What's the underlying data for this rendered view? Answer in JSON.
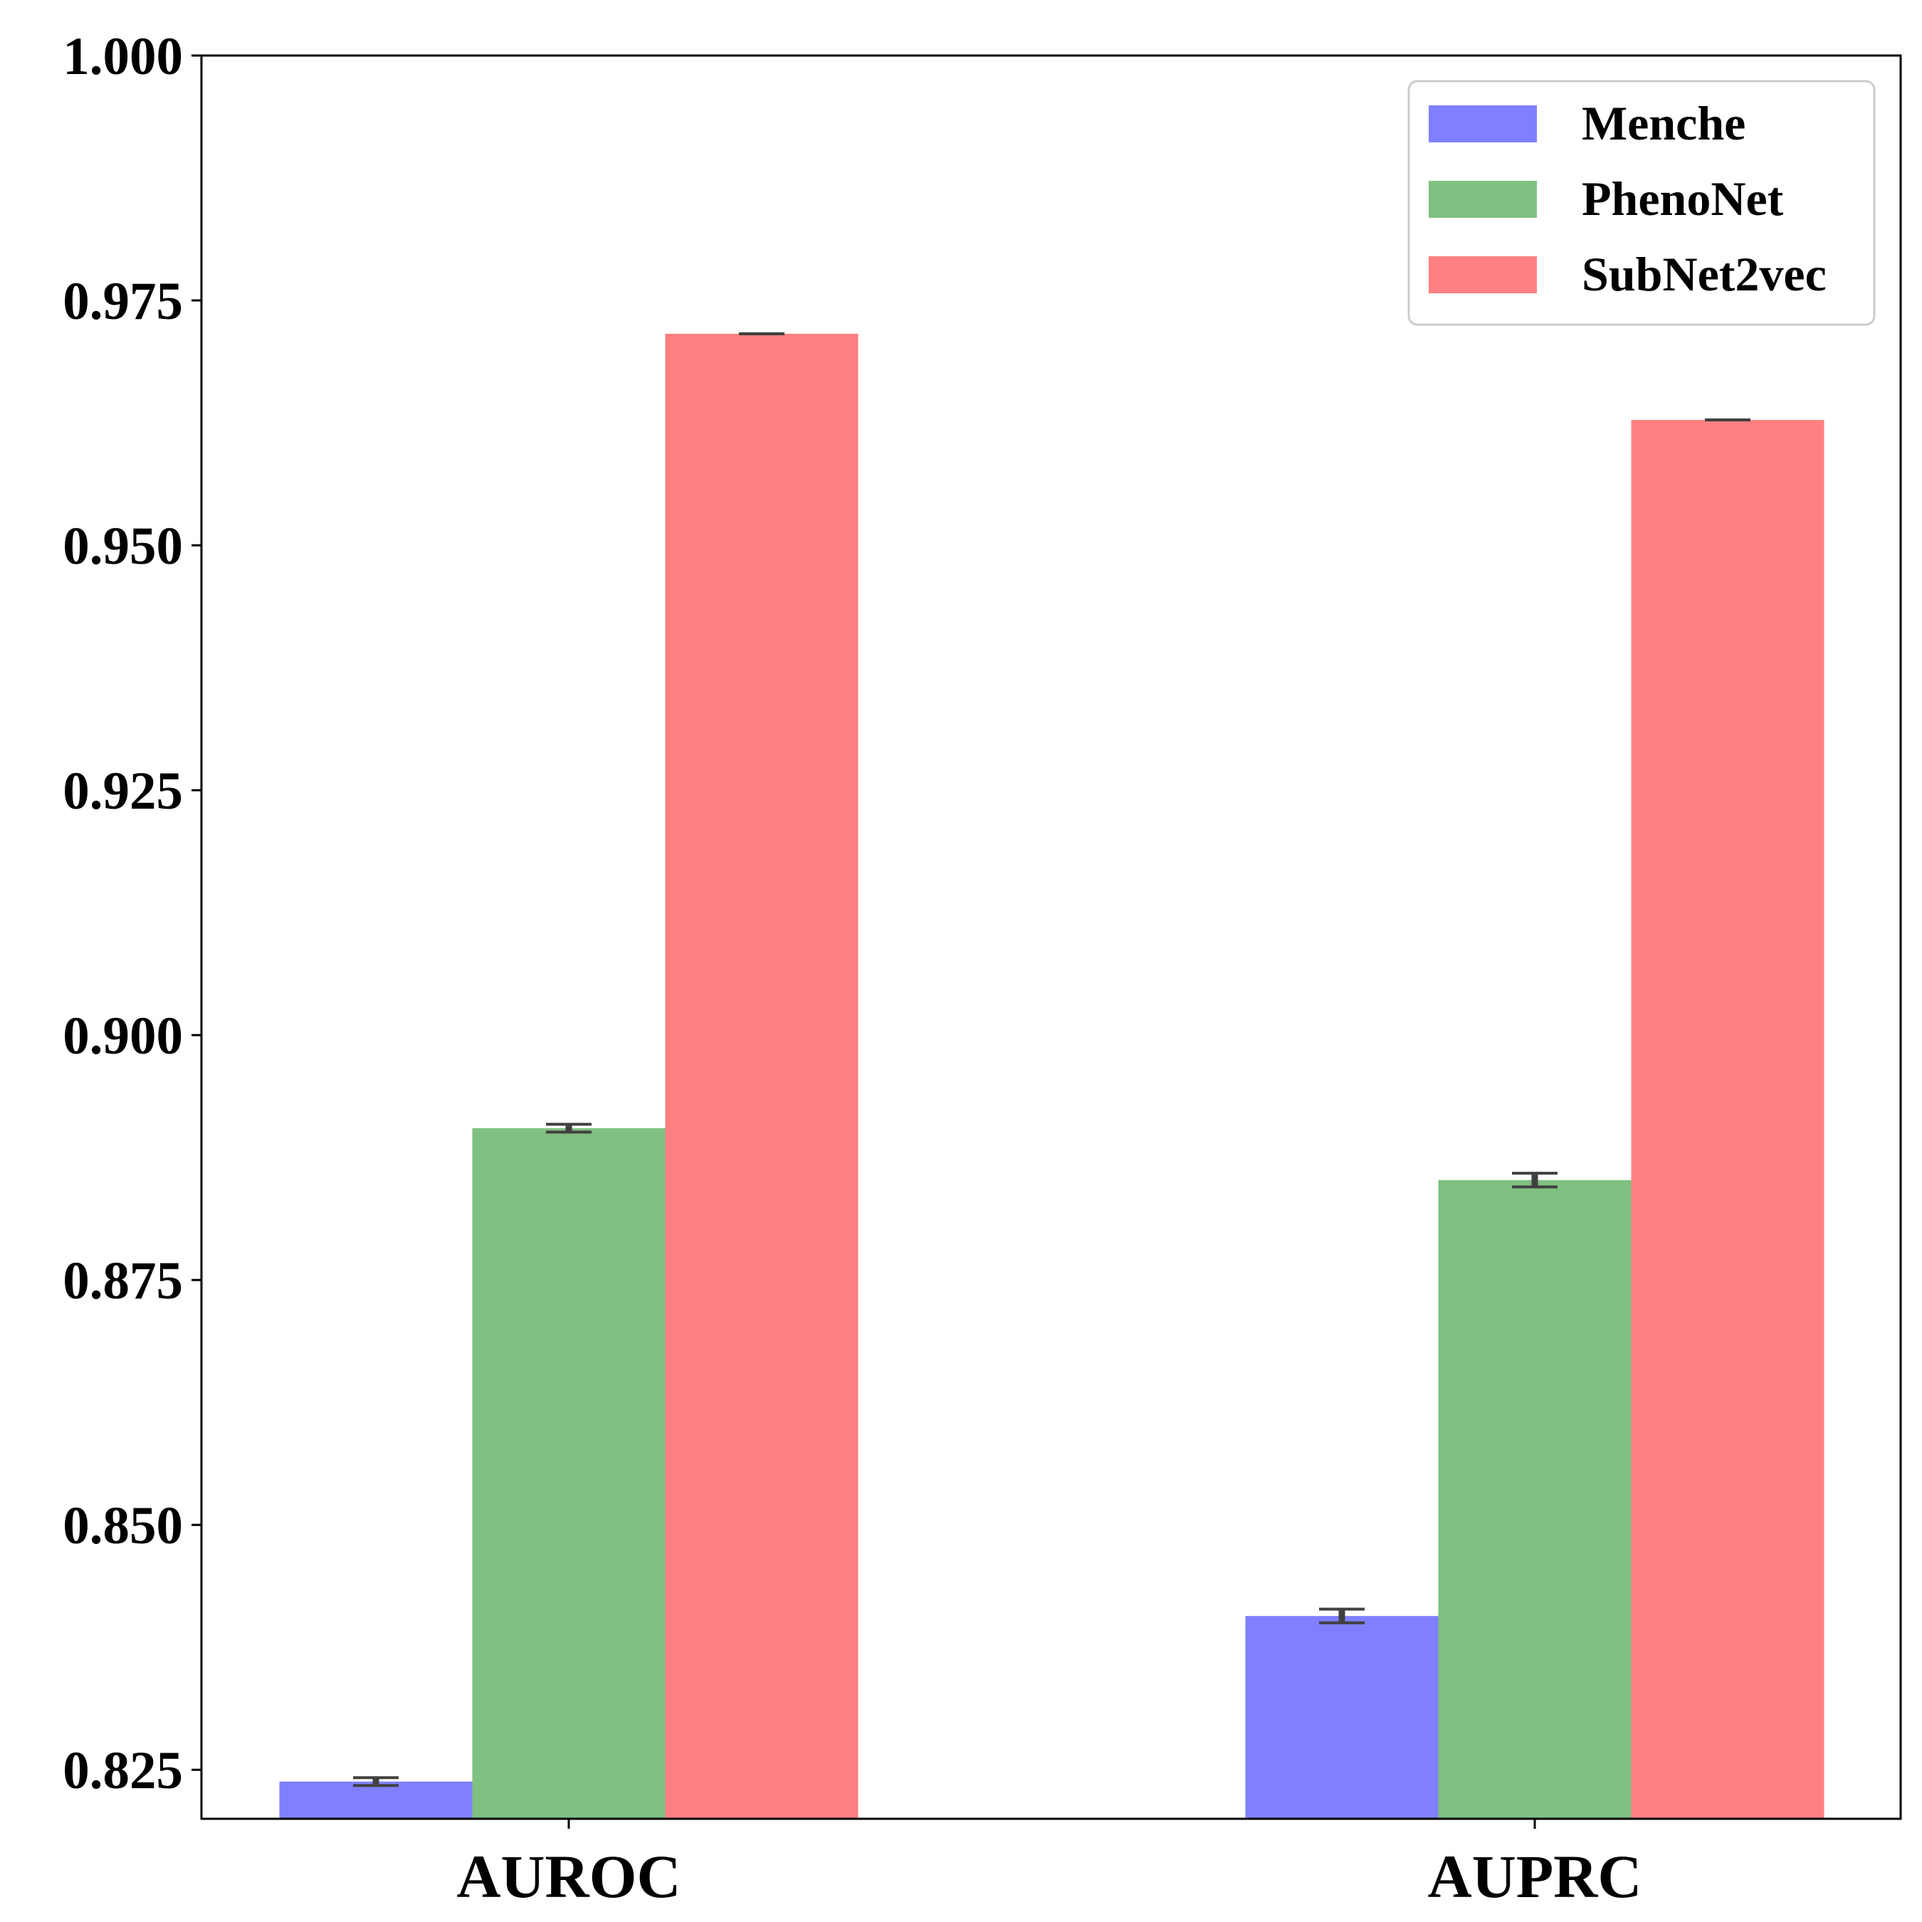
{
  "chart_data": {
    "type": "bar",
    "title": "",
    "xlabel": "",
    "ylabel": "",
    "categories": [
      "AUROC",
      "AUPRC"
    ],
    "ylim": [
      0.82,
      1.0
    ],
    "yticks": [
      0.825,
      0.85,
      0.875,
      0.9,
      0.925,
      0.95,
      0.975,
      1.0
    ],
    "ytick_labels": [
      "0.825",
      "0.850",
      "0.875",
      "0.900",
      "0.925",
      "0.950",
      "0.975",
      "1.000"
    ],
    "series": [
      {
        "name": "Menche",
        "color": "#8080ff",
        "values": [
          0.8238,
          0.8407
        ],
        "errors": [
          0.0004,
          0.0007
        ]
      },
      {
        "name": "PhenoNet",
        "color": "#80c080",
        "values": [
          0.8905,
          0.8852
        ],
        "errors": [
          0.0004,
          0.0007
        ]
      },
      {
        "name": "SubNet2vec",
        "color": "#ff8080",
        "values": [
          0.9716,
          0.9628
        ],
        "errors": [
          0.0,
          0.0
        ]
      }
    ],
    "legend": {
      "position": "top-right"
    },
    "grid": false
  }
}
